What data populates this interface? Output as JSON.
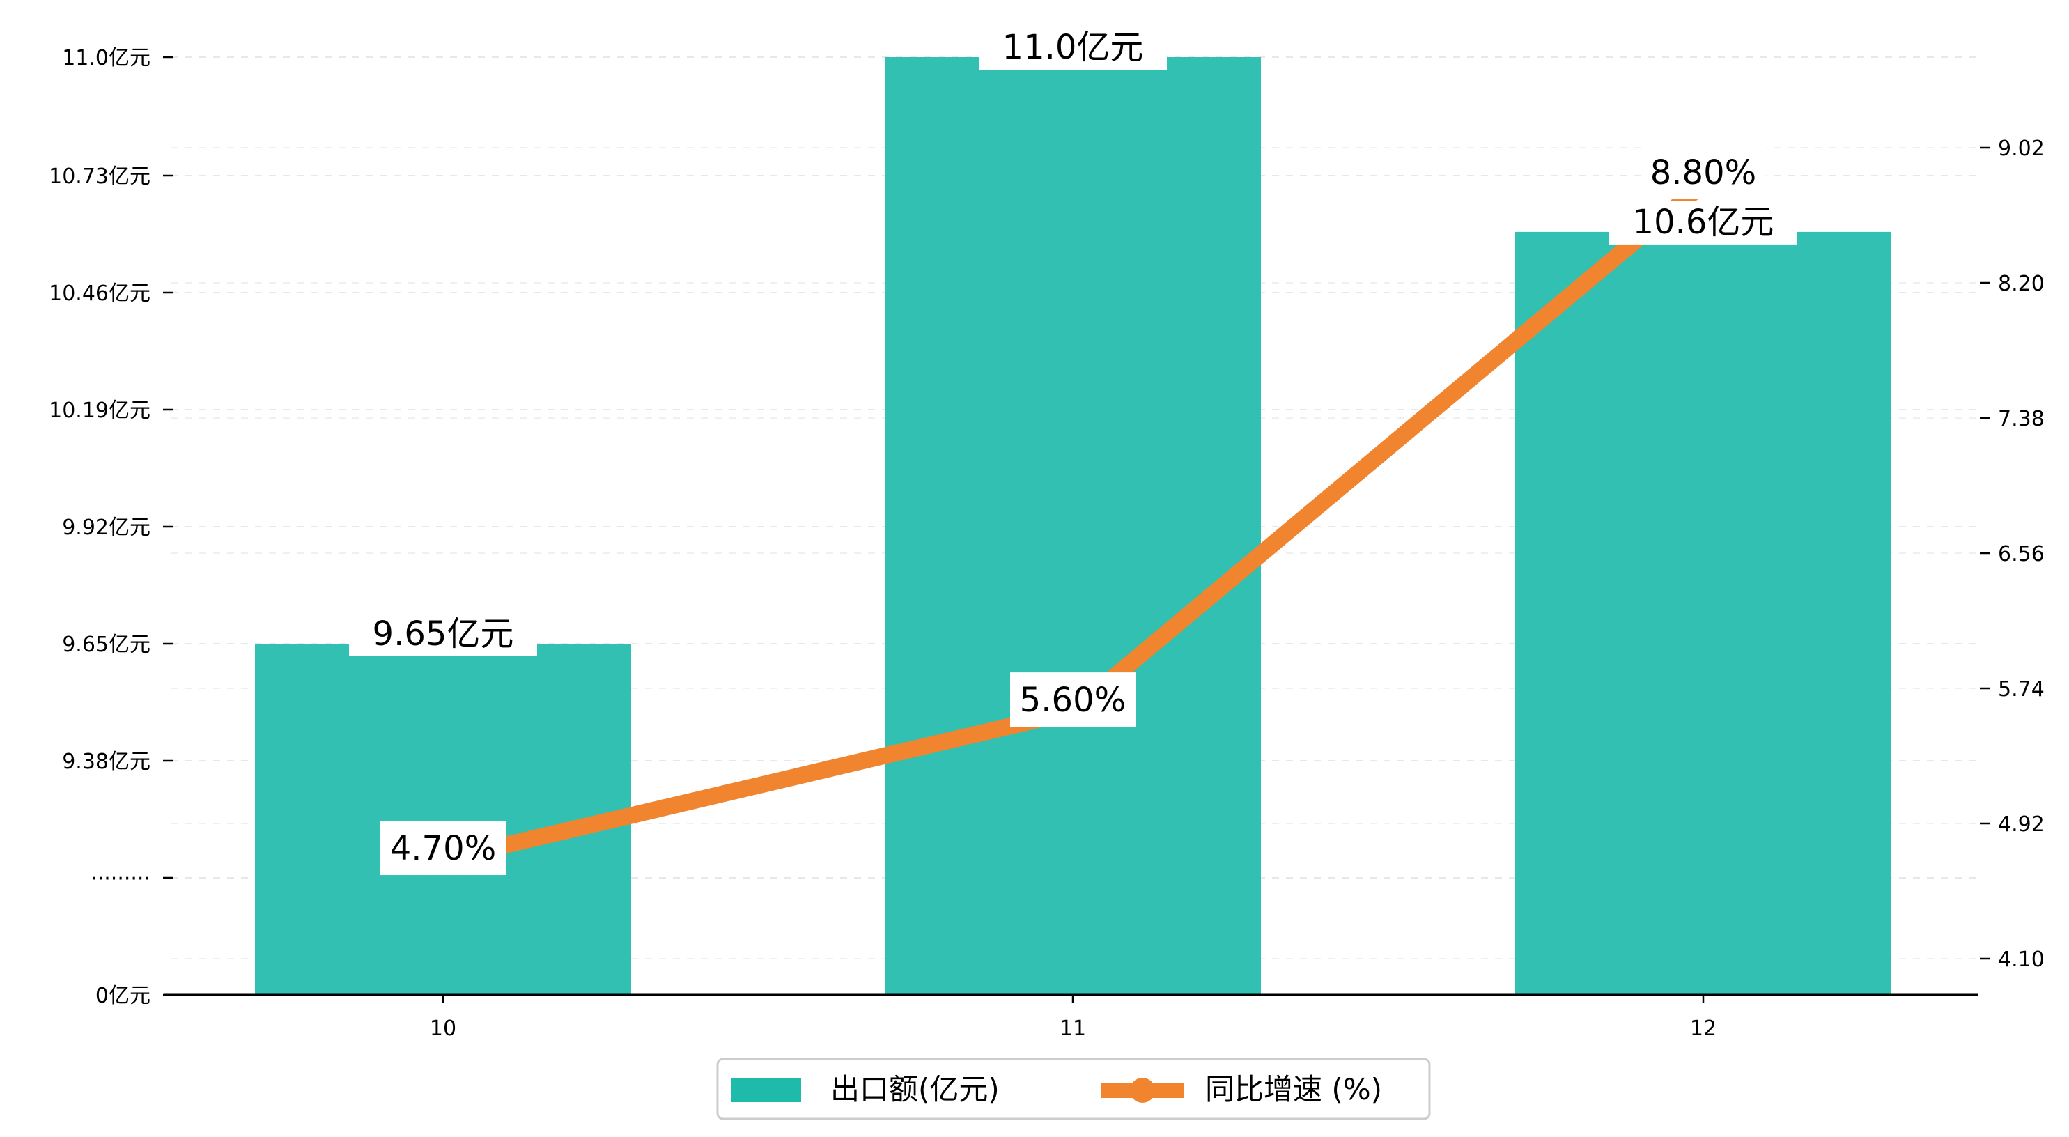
{
  "chart_data": {
    "type": "bar",
    "categories": [
      "10",
      "11",
      "12"
    ],
    "series": [
      {
        "name": "出口额(亿元)",
        "type": "bar",
        "axis": "left",
        "color": "#1FBBAA",
        "values": [
          9.65,
          11.0,
          10.6
        ],
        "labels": [
          "9.65亿元",
          "11.0亿元",
          "10.6亿元"
        ]
      },
      {
        "name": "同比增速 (%)",
        "type": "line",
        "axis": "right",
        "color": "#F0842F",
        "values": [
          4.7,
          5.6,
          8.8
        ],
        "labels": [
          "4.70%",
          "5.60%",
          "8.80%"
        ]
      }
    ],
    "y_left": {
      "ticks": [
        0,
        9.11,
        9.38,
        9.65,
        9.92,
        10.19,
        10.46,
        10.73,
        11.0
      ],
      "tick_labels": [
        "0亿元",
        "·········",
        "9.38亿元",
        "9.65亿元",
        "9.92亿元",
        "10.19亿元",
        "10.46亿元",
        "10.73亿元",
        "11.0亿元"
      ],
      "broken_axis": true
    },
    "y_right": {
      "ticks": [
        4.1,
        4.92,
        5.74,
        6.56,
        7.38,
        8.2,
        9.02
      ],
      "tick_labels": [
        "4.10",
        "4.92",
        "5.74",
        "6.56",
        "7.38",
        "8.20",
        "9.02"
      ],
      "ylim": [
        3.85,
        9.75
      ]
    },
    "grid": true,
    "legend": "bottom-center"
  }
}
